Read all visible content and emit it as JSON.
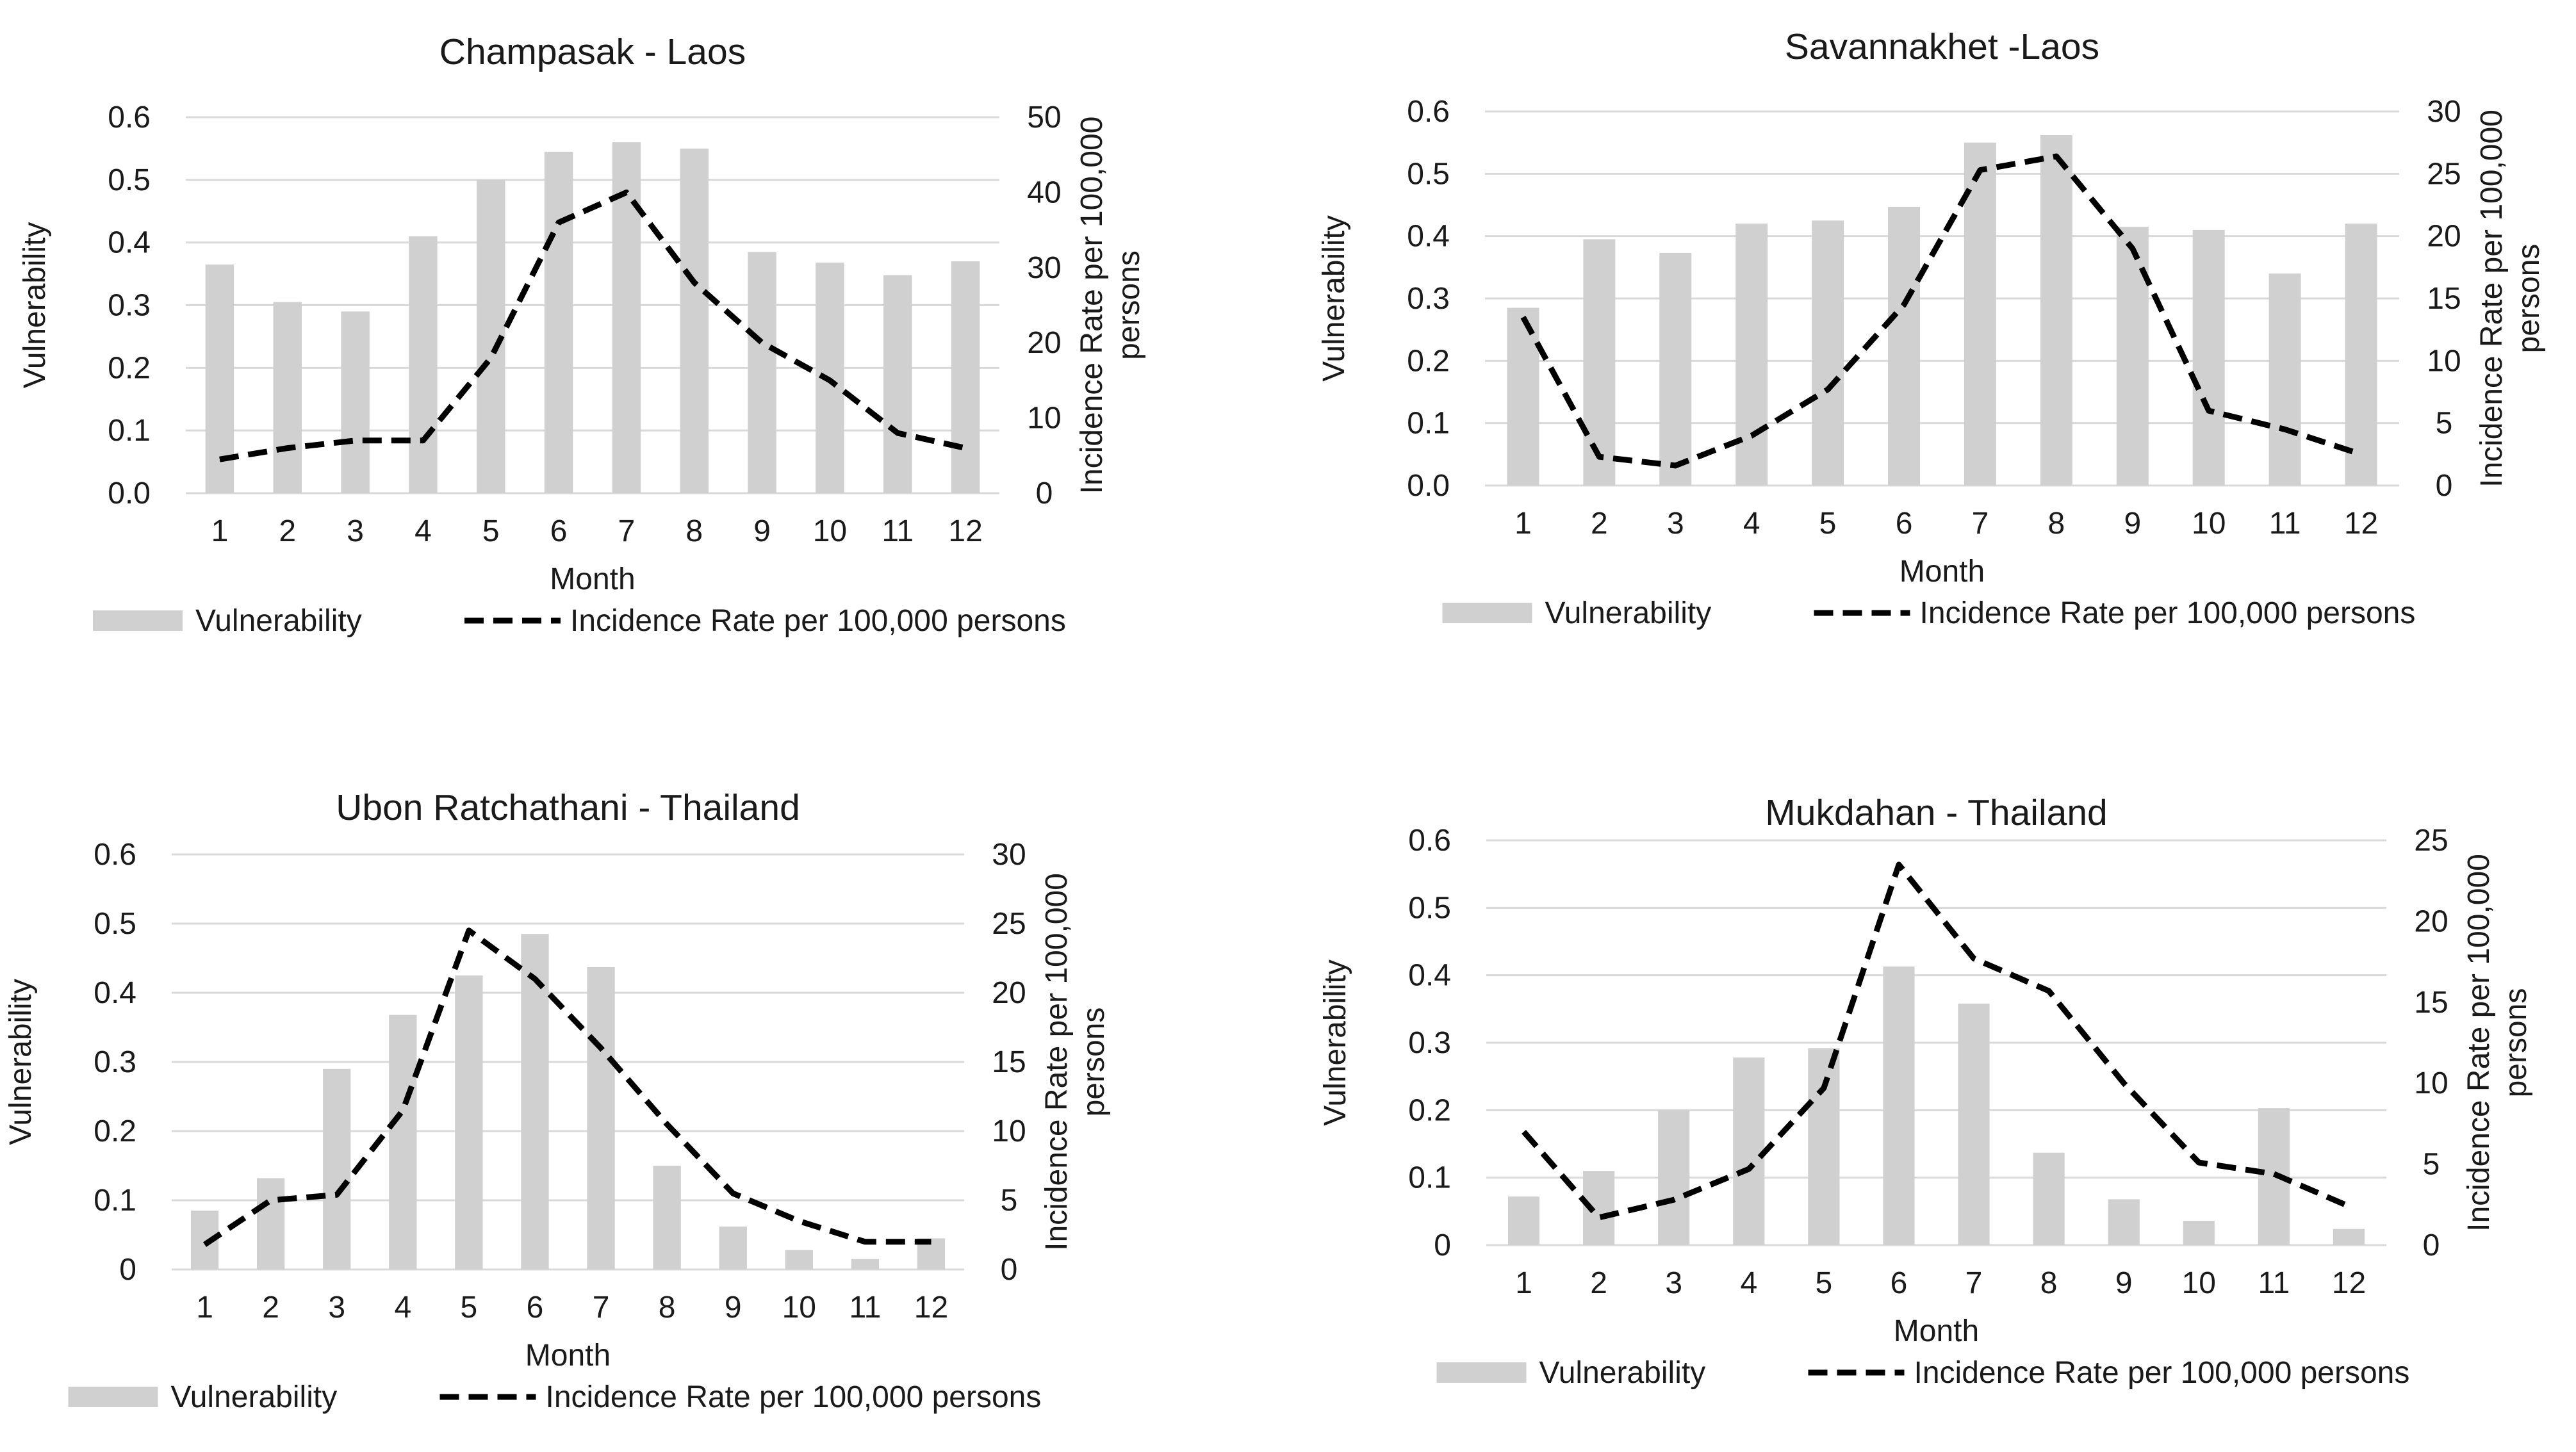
{
  "colors": {
    "bar": "#d0d0d0",
    "line": "#000000",
    "grid": "#d9d9d9",
    "text": "#1a1a1a"
  },
  "chart_data": [
    {
      "type": "bar+line",
      "title": "Champasak - Laos",
      "xlabel": "Month",
      "ylabel_left": "Vulnerability",
      "ylabel_right_lines": [
        "Incidence Rate per 100,000",
        "persons"
      ],
      "categories": [
        "1",
        "2",
        "3",
        "4",
        "5",
        "6",
        "7",
        "8",
        "9",
        "10",
        "11",
        "12"
      ],
      "left_ticks": [
        "0.0",
        "0.1",
        "0.2",
        "0.3",
        "0.4",
        "0.5",
        "0.6"
      ],
      "left_ylim": [
        0,
        0.6
      ],
      "right_ticks": [
        "0",
        "10",
        "20",
        "30",
        "40",
        "50"
      ],
      "right_ylim": [
        0,
        50
      ],
      "series": [
        {
          "name": "Vulnerability",
          "type": "bar",
          "axis": "left",
          "values": [
            0.365,
            0.305,
            0.29,
            0.41,
            0.5,
            0.545,
            0.56,
            0.55,
            0.385,
            0.368,
            0.348,
            0.37
          ]
        },
        {
          "name": "Incidence Rate per 100,000 persons",
          "type": "line",
          "axis": "right",
          "values": [
            4.5,
            6,
            7,
            7,
            18,
            36,
            40,
            28,
            20,
            15,
            8,
            6
          ]
        }
      ],
      "legend": [
        "Vulnerability",
        "Incidence Rate per 100,000 persons"
      ]
    },
    {
      "type": "bar+line",
      "title": "Savannakhet -Laos",
      "xlabel": "Month",
      "ylabel_left": "Vulnerability",
      "ylabel_right_lines": [
        "Incidence Rate per 100,000",
        "persons"
      ],
      "categories": [
        "1",
        "2",
        "3",
        "4",
        "5",
        "6",
        "7",
        "8",
        "9",
        "10",
        "11",
        "12"
      ],
      "left_ticks": [
        "0.0",
        "0.1",
        "0.2",
        "0.3",
        "0.4",
        "0.5",
        "0.6"
      ],
      "left_ylim": [
        0,
        0.6
      ],
      "right_ticks": [
        "0",
        "5",
        "10",
        "15",
        "20",
        "25",
        "30"
      ],
      "right_ylim": [
        0,
        30
      ],
      "series": [
        {
          "name": "Vulnerability",
          "type": "bar",
          "axis": "left",
          "values": [
            0.285,
            0.395,
            0.373,
            0.42,
            0.425,
            0.447,
            0.55,
            0.562,
            0.415,
            0.41,
            0.34,
            0.42
          ]
        },
        {
          "name": "Incidence Rate per 100,000 persons",
          "type": "line",
          "axis": "right",
          "values": [
            13.5,
            2.3,
            1.6,
            4,
            7.7,
            14.5,
            25.3,
            26.4,
            19,
            6,
            4.5,
            2.5
          ]
        }
      ],
      "legend": [
        "Vulnerability",
        "Incidence Rate per 100,000 persons"
      ]
    },
    {
      "type": "bar+line",
      "title": "Ubon Ratchathani - Thailand",
      "xlabel": "Month",
      "ylabel_left": "Vulnerability",
      "ylabel_right_lines": [
        "Incidence Rate per 100,000",
        "persons"
      ],
      "categories": [
        "1",
        "2",
        "3",
        "4",
        "5",
        "6",
        "7",
        "8",
        "9",
        "10",
        "11",
        "12"
      ],
      "left_ticks": [
        "0",
        "0.1",
        "0.2",
        "0.3",
        "0.4",
        "0.5",
        "0.6"
      ],
      "left_ylim": [
        0,
        0.6
      ],
      "right_ticks": [
        "0",
        "5",
        "10",
        "15",
        "20",
        "25",
        "30"
      ],
      "right_ylim": [
        0,
        30
      ],
      "series": [
        {
          "name": "Vulnerability",
          "type": "bar",
          "axis": "left",
          "values": [
            0.085,
            0.132,
            0.29,
            0.368,
            0.425,
            0.485,
            0.437,
            0.15,
            0.062,
            0.028,
            0.015,
            0.045
          ]
        },
        {
          "name": "Incidence Rate per 100,000 persons",
          "type": "line",
          "axis": "right",
          "values": [
            1.8,
            5,
            5.4,
            11.5,
            24.5,
            21,
            16,
            10.5,
            5.5,
            3.5,
            2,
            2
          ]
        }
      ],
      "legend": [
        "Vulnerability",
        "Incidence Rate per 100,000 persons"
      ]
    },
    {
      "type": "bar+line",
      "title": "Mukdahan - Thailand",
      "xlabel": "Month",
      "ylabel_left": "Vulnerability",
      "ylabel_right_lines": [
        "Incidence Rate per 100,000",
        "persons"
      ],
      "categories": [
        "1",
        "2",
        "3",
        "4",
        "5",
        "6",
        "7",
        "8",
        "9",
        "10",
        "11",
        "12"
      ],
      "left_ticks": [
        "0",
        "0.1",
        "0.2",
        "0.3",
        "0.4",
        "0.5",
        "0.6"
      ],
      "left_ylim": [
        0,
        0.6
      ],
      "right_ticks": [
        "0",
        "5",
        "10",
        "15",
        "20",
        "25"
      ],
      "right_ylim": [
        0,
        25
      ],
      "series": [
        {
          "name": "Vulnerability",
          "type": "bar",
          "axis": "left",
          "values": [
            0.072,
            0.11,
            0.2,
            0.278,
            0.292,
            0.413,
            0.358,
            0.137,
            0.068,
            0.036,
            0.203,
            0.024
          ]
        },
        {
          "name": "Incidence Rate per 100,000 persons",
          "type": "line",
          "axis": "right",
          "values": [
            7,
            1.7,
            2.8,
            4.7,
            9.7,
            23.5,
            17.7,
            15.7,
            10,
            5.1,
            4.4,
            2.4
          ]
        }
      ],
      "legend": [
        "Vulnerability",
        "Incidence Rate per 100,000 persons"
      ]
    }
  ]
}
